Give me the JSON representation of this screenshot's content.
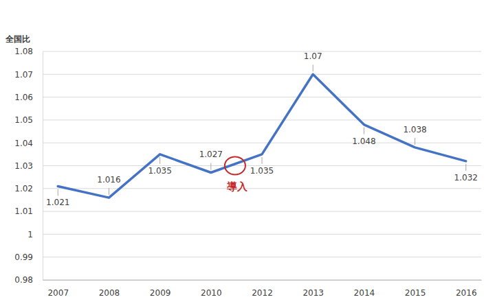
{
  "chart_data": {
    "type": "line",
    "y_label": "全国比",
    "categories": [
      "2007",
      "2008",
      "2009",
      "2010",
      "2012",
      "2013",
      "2014",
      "2015",
      "2016"
    ],
    "values": [
      1.021,
      1.016,
      1.035,
      1.027,
      1.035,
      1.07,
      1.048,
      1.038,
      1.032
    ],
    "color": "#4472c4",
    "ylim": [
      0.98,
      1.08
    ],
    "yticks": [
      0.98,
      0.99,
      1,
      1.01,
      1.02,
      1.03,
      1.04,
      1.05,
      1.06,
      1.07,
      1.08
    ],
    "grid": true,
    "data_labels": true,
    "annotations": [
      {
        "text": "導入",
        "between": [
          "2010",
          "2012"
        ],
        "y": 1.03
      }
    ]
  }
}
